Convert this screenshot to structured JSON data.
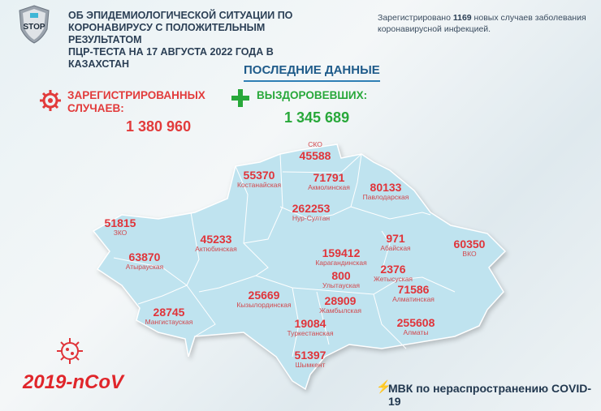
{
  "header": {
    "title_lines": [
      "ОБ ЭПИДЕМИОЛОГИЧЕСКОЙ СИТУАЦИИ ПО",
      "КОРОНАВИРУСУ С ПОЛОЖИТЕЛЬНЫМ РЕЗУЛЬТАТОМ",
      "ПЦР-ТЕСТА НА 17 АВГУСТА 2022 ГОДА В КАЗАХСТАН"
    ],
    "logo_text": "STOP",
    "note_prefix": "Зарегистрировано ",
    "note_count": "1169",
    "note_suffix": " новых случаев заболевания коронавирусной инфекцией."
  },
  "latest_title": "ПОСЛЕДНИЕ ДАННЫЕ",
  "registered": {
    "label_lines": [
      "ЗАРЕГИСТРИРОВАННЫХ",
      "СЛУЧАЕВ:"
    ],
    "value": "1 380 960"
  },
  "recovered": {
    "label": "ВЫЗДОРОВЕВШИХ:",
    "value": "1 345 689"
  },
  "colors": {
    "red": "#e0343a",
    "green": "#28a83a",
    "map": "#bfe3ef",
    "title": "#2b3f55"
  },
  "regions": [
    {
      "name": "СКО",
      "value": "45588"
    },
    {
      "name": "Костанайская",
      "value": "55370"
    },
    {
      "name": "Акмолинская",
      "value": "71791"
    },
    {
      "name": "Павлодарская",
      "value": "80133"
    },
    {
      "name": "Нур-Султан",
      "value": "262253"
    },
    {
      "name": "ЗКО",
      "value": "51815"
    },
    {
      "name": "Актюбинская",
      "value": "45233"
    },
    {
      "name": "Атырауская",
      "value": "63870"
    },
    {
      "name": "Карагандинская",
      "value": "159412"
    },
    {
      "name": "Абайская",
      "value": "971"
    },
    {
      "name": "ВКО",
      "value": "60350"
    },
    {
      "name": "Жетысуская",
      "value": "2376"
    },
    {
      "name": "Улытауская",
      "value": "800"
    },
    {
      "name": "Кызылординская",
      "value": "25669"
    },
    {
      "name": "Алматинская",
      "value": "71586"
    },
    {
      "name": "Мангистауская",
      "value": "28745"
    },
    {
      "name": "Жамбылская",
      "value": "28909"
    },
    {
      "name": "Туркестанская",
      "value": "19084"
    },
    {
      "name": "Алматы",
      "value": "255608"
    },
    {
      "name": "Шымкент",
      "value": "51397"
    }
  ],
  "footer": {
    "ncov": "2019-nCoV",
    "mvk": "МВК по нераспространению COVID-19"
  }
}
